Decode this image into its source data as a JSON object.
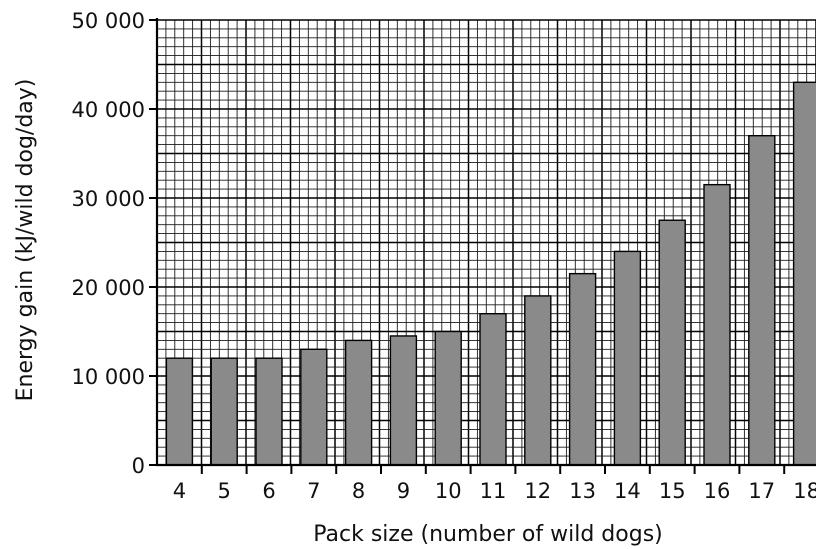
{
  "chart_data": {
    "type": "bar",
    "title": "",
    "xlabel": "Pack size (number of wild dogs)",
    "ylabel": "Energy gain (kJ/wild dog/day)",
    "categories": [
      "4",
      "5",
      "6",
      "7",
      "8",
      "9",
      "10",
      "11",
      "12",
      "13",
      "14",
      "15",
      "16",
      "17",
      "18"
    ],
    "values": [
      12000,
      12000,
      12000,
      13000,
      14000,
      14500,
      15000,
      17000,
      19000,
      21500,
      24000,
      27500,
      31500,
      37000,
      43000
    ],
    "ylim": [
      0,
      50000
    ],
    "yticks": [
      0,
      10000,
      20000,
      30000,
      40000,
      50000
    ],
    "ytick_labels": [
      "0",
      "10 000",
      "20 000",
      "30 000",
      "40 000",
      "50 000"
    ],
    "grid": true,
    "bar_color": "#8a8a8a"
  }
}
